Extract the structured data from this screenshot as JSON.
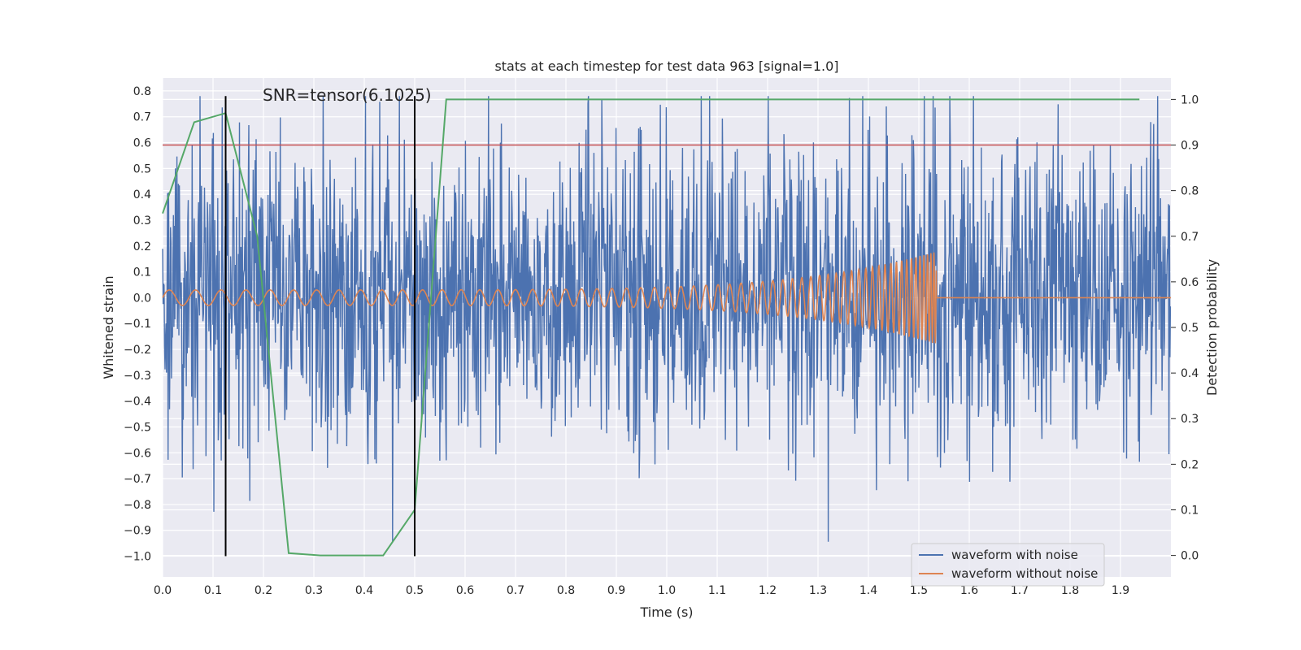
{
  "chart_data": {
    "type": "line",
    "title": "stats at each timestep for test data 963 [signal=1.0]",
    "xlabel": "Time (s)",
    "ylabel": "Whitened strain",
    "y2label": "Detection probability",
    "xlim": [
      0.0,
      2.0
    ],
    "ylim": [
      -1.08,
      0.85
    ],
    "y2lim": [
      -0.047,
      1.047
    ],
    "xticks": [
      "0.0",
      "0.1",
      "0.2",
      "0.3",
      "0.4",
      "0.5",
      "0.6",
      "0.7",
      "0.8",
      "0.9",
      "1.0",
      "1.1",
      "1.2",
      "1.3",
      "1.4",
      "1.5",
      "1.6",
      "1.7",
      "1.8",
      "1.9"
    ],
    "yticks": [
      "0.8",
      "0.7",
      "0.6",
      "0.5",
      "0.4",
      "0.3",
      "0.2",
      "0.1",
      "0.0",
      "−0.1",
      "−0.2",
      "−0.3",
      "−0.4",
      "−0.5",
      "−0.6",
      "−0.7",
      "−0.8",
      "−0.9",
      "−1.0"
    ],
    "y2ticks": [
      "1.0",
      "0.9",
      "0.8",
      "0.7",
      "0.6",
      "0.5",
      "0.4",
      "0.3",
      "0.2",
      "0.1",
      "0.0"
    ],
    "grid": true,
    "legend_position": "lower-right",
    "annotation": "SNR=tensor(6.1025)",
    "threshold": {
      "value": 0.9,
      "axis": "y2",
      "color": "#c44e52"
    },
    "vlines": [
      {
        "x": 0.125,
        "ymin": -1.0,
        "ymax": 0.78
      },
      {
        "x": 0.5,
        "ymin": -1.0,
        "ymax": 0.78
      }
    ],
    "detection_probability": {
      "axis": "y2",
      "color": "#55a868",
      "x": [
        0.0,
        0.0625,
        0.125,
        0.1875,
        0.25,
        0.3125,
        0.375,
        0.4375,
        0.5,
        0.5625,
        0.625,
        1.0,
        1.5,
        1.9375
      ],
      "y": [
        0.75,
        0.95,
        0.97,
        0.7,
        0.005,
        0.0,
        0.0,
        0.0,
        0.1,
        1.0,
        1.0,
        1.0,
        1.0,
        1.0
      ]
    },
    "series": [
      {
        "name": "waveform with noise",
        "color": "#4c72b0",
        "description": "noisy whitened strain, approx. amplitude 0.3, extremes near -1.0 and 0.78"
      },
      {
        "name": "waveform without noise",
        "color": "#dd8452",
        "description": "chirp signal growing from amplitude 0.03 to 0.18, merger near t=1.535 s, flat 0.0 afterwards"
      }
    ]
  }
}
